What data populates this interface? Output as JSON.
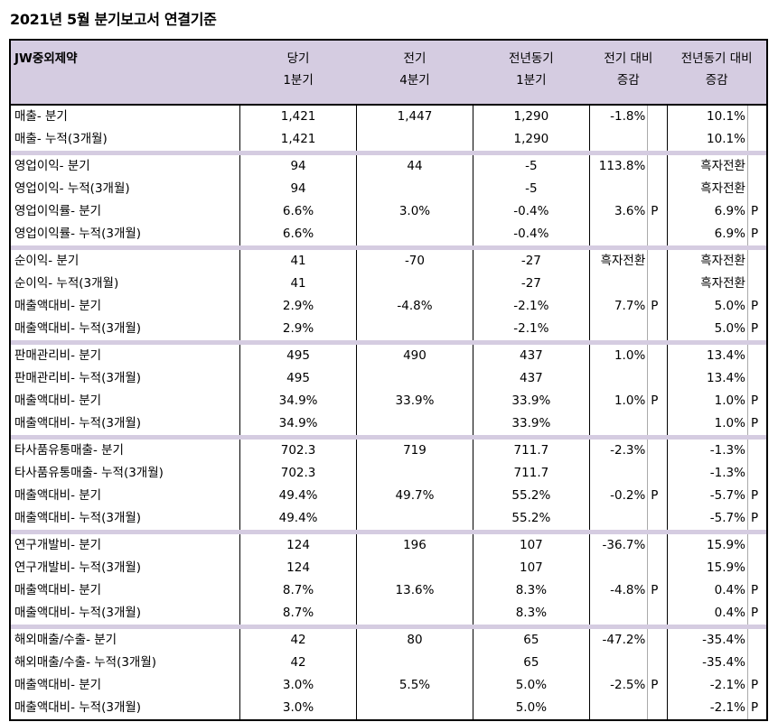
{
  "title": "2021년 5월 분기보고서 연결기준",
  "company": "JW중외제약",
  "headers": [
    "당기\n1분기",
    "전기\n4분기",
    "전년동기\n1분기",
    "전기 대비\n증감",
    "전년동기 대비\n증감"
  ],
  "groups": [
    {
      "rows": [
        [
          "매출- 분기",
          "1,421",
          "1,447",
          "1,290",
          "-1.8%",
          "",
          "10.1%",
          ""
        ],
        [
          "매출- 누적(3개월)",
          "1,421",
          "",
          "1,290",
          "",
          "",
          "10.1%",
          ""
        ]
      ]
    },
    {
      "rows": [
        [
          "영업이익- 분기",
          "94",
          "44",
          "-5",
          "113.8%",
          "",
          "흑자전환",
          ""
        ],
        [
          "영업이익- 누적(3개월)",
          "94",
          "",
          "-5",
          "",
          "",
          "흑자전환",
          ""
        ],
        [
          "영업이익률- 분기",
          "6.6%",
          "3.0%",
          "-0.4%",
          "3.6%",
          "P",
          "6.9%",
          "P"
        ],
        [
          "영업이익률- 누적(3개월)",
          "6.6%",
          "",
          "-0.4%",
          "",
          "",
          "6.9%",
          "P"
        ]
      ]
    },
    {
      "rows": [
        [
          "순이익- 분기",
          "41",
          "-70",
          "-27",
          "흑자전환",
          "",
          "흑자전환",
          ""
        ],
        [
          "순이익- 누적(3개월)",
          "41",
          "",
          "-27",
          "",
          "",
          "흑자전환",
          ""
        ],
        [
          "매출액대비- 분기",
          "2.9%",
          "-4.8%",
          "-2.1%",
          "7.7%",
          "P",
          "5.0%",
          "P"
        ],
        [
          "매출액대비- 누적(3개월)",
          "2.9%",
          "",
          "-2.1%",
          "",
          "",
          "5.0%",
          "P"
        ]
      ]
    },
    {
      "rows": [
        [
          "판매관리비- 분기",
          "495",
          "490",
          "437",
          "1.0%",
          "",
          "13.4%",
          ""
        ],
        [
          "판매관리비- 누적(3개월)",
          "495",
          "",
          "437",
          "",
          "",
          "13.4%",
          ""
        ],
        [
          "매출액대비- 분기",
          "34.9%",
          "33.9%",
          "33.9%",
          "1.0%",
          "P",
          "1.0%",
          "P"
        ],
        [
          "매출액대비- 누적(3개월)",
          "34.9%",
          "",
          "33.9%",
          "",
          "",
          "1.0%",
          "P"
        ]
      ]
    },
    {
      "rows": [
        [
          "타사품유통매출- 분기",
          "702.3",
          "719",
          "711.7",
          "-2.3%",
          "",
          "-1.3%",
          ""
        ],
        [
          "타사품유통매출- 누적(3개월)",
          "702.3",
          "",
          "711.7",
          "",
          "",
          "-1.3%",
          ""
        ],
        [
          "매출액대비- 분기",
          "49.4%",
          "49.7%",
          "55.2%",
          "-0.2%",
          "P",
          "-5.7%",
          "P"
        ],
        [
          "매출액대비- 누적(3개월)",
          "49.4%",
          "",
          "55.2%",
          "",
          "",
          "-5.7%",
          "P"
        ]
      ]
    },
    {
      "rows": [
        [
          "연구개발비- 분기",
          "124",
          "196",
          "107",
          "-36.7%",
          "",
          "15.9%",
          ""
        ],
        [
          "연구개발비- 누적(3개월)",
          "124",
          "",
          "107",
          "",
          "",
          "15.9%",
          ""
        ],
        [
          "매출액대비- 분기",
          "8.7%",
          "13.6%",
          "8.3%",
          "-4.8%",
          "P",
          "0.4%",
          "P"
        ],
        [
          "매출액대비- 누적(3개월)",
          "8.7%",
          "",
          "8.3%",
          "",
          "",
          "0.4%",
          "P"
        ]
      ]
    },
    {
      "rows": [
        [
          "해외매출/수출- 분기",
          "42",
          "80",
          "65",
          "-47.2%",
          "",
          "-35.4%",
          ""
        ],
        [
          "해외매출/수출- 누적(3개월)",
          "42",
          "",
          "65",
          "",
          "",
          "-35.4%",
          ""
        ],
        [
          "매출액대비- 분기",
          "3.0%",
          "5.5%",
          "5.0%",
          "-2.5%",
          "P",
          "-2.1%",
          "P"
        ],
        [
          "매출액대비- 누적(3개월)",
          "3.0%",
          "",
          "5.0%",
          "",
          "",
          "-2.1%",
          "P"
        ]
      ]
    }
  ]
}
